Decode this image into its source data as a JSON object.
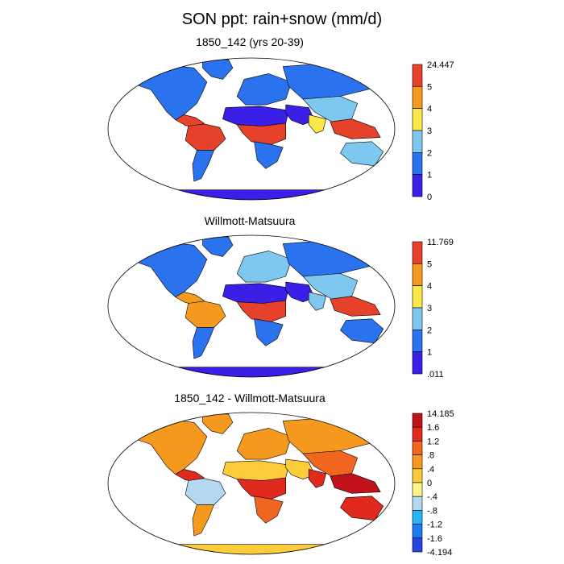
{
  "title": "SON ppt: rain+snow (mm/d)",
  "colors": {
    "land_outline": "#000000",
    "precip_scale": [
      "#3a1fe6",
      "#2a72ee",
      "#7ec8ef",
      "#fde84a",
      "#f59a1e",
      "#e6412b"
    ],
    "diff_scale": [
      "#3a1fe6",
      "#2a45dd",
      "#1b7bf0",
      "#2ab3f5",
      "#b4d8f0",
      "#fff58a",
      "#fdcc3a",
      "#f59a1e",
      "#f0661e",
      "#e02a1e",
      "#c1121c"
    ]
  },
  "panels": [
    {
      "title": "1850_142 (yrs 20-39)",
      "colorbar_labels": [
        "24.447",
        "5",
        "4",
        "3",
        "2",
        "1",
        "0"
      ]
    },
    {
      "title": "Willmott-Matsuura",
      "colorbar_labels": [
        "11.769",
        "5",
        "4",
        "3",
        "2",
        "1",
        ".011"
      ]
    },
    {
      "title": "1850_142 - Willmott-Matsuura",
      "colorbar_labels": [
        "14.185",
        "1.6",
        "1.2",
        ".8",
        ".4",
        "0",
        "-.4",
        "-.8",
        "-1.2",
        "-1.6",
        "-4.194"
      ]
    }
  ],
  "chart_data": [
    {
      "type": "heatmap",
      "title": "1850_142 (yrs 20-39)",
      "variable": "SON ppt: rain+snow (mm/d)",
      "projection": "Robinson",
      "colorbar_levels": [
        0,
        1,
        2,
        3,
        4,
        5
      ],
      "colorbar_min": 0,
      "colorbar_max": 24.447,
      "regions": [
        {
          "region": "North America",
          "level": 1
        },
        {
          "region": "Greenland",
          "level": 1
        },
        {
          "region": "Central America",
          "level": 5
        },
        {
          "region": "Amazon",
          "level": 5
        },
        {
          "region": "Southern South America",
          "level": 1
        },
        {
          "region": "Europe",
          "level": 1
        },
        {
          "region": "Sahara",
          "level": 0
        },
        {
          "region": "Central Africa",
          "level": 5
        },
        {
          "region": "Southern Africa",
          "level": 1
        },
        {
          "region": "Middle East",
          "level": 0
        },
        {
          "region": "Siberia",
          "level": 1
        },
        {
          "region": "East Asia",
          "level": 2
        },
        {
          "region": "South Asia",
          "level": 3
        },
        {
          "region": "Southeast Asia",
          "level": 5
        },
        {
          "region": "Australia",
          "level": 2
        },
        {
          "region": "Antarctica",
          "level": 0
        }
      ]
    },
    {
      "type": "heatmap",
      "title": "Willmott-Matsuura",
      "variable": "SON ppt: rain+snow (mm/d)",
      "projection": "Robinson",
      "colorbar_levels": [
        1,
        2,
        3,
        4,
        5
      ],
      "colorbar_min": 0.011,
      "colorbar_max": 11.769,
      "regions": [
        {
          "region": "North America",
          "level": 1
        },
        {
          "region": "Greenland",
          "level": 1
        },
        {
          "region": "Central America",
          "level": 4
        },
        {
          "region": "Amazon",
          "level": 4
        },
        {
          "region": "Southern South America",
          "level": 1
        },
        {
          "region": "Europe",
          "level": 2
        },
        {
          "region": "Sahara",
          "level": 0
        },
        {
          "region": "Central Africa",
          "level": 5
        },
        {
          "region": "Southern Africa",
          "level": 1
        },
        {
          "region": "Middle East",
          "level": 0
        },
        {
          "region": "Siberia",
          "level": 1
        },
        {
          "region": "East Asia",
          "level": 2
        },
        {
          "region": "South Asia",
          "level": 2
        },
        {
          "region": "Southeast Asia",
          "level": 5
        },
        {
          "region": "Australia",
          "level": 1
        },
        {
          "region": "Antarctica",
          "level": 0
        }
      ]
    },
    {
      "type": "heatmap",
      "title": "1850_142 - Willmott-Matsuura",
      "variable": "SON ppt: rain+snow (mm/d)",
      "projection": "Robinson",
      "colorbar_levels": [
        -1.6,
        -1.2,
        -0.8,
        -0.4,
        0,
        0.4,
        0.8,
        1.2,
        1.6
      ],
      "colorbar_min": -4.194,
      "colorbar_max": 14.185,
      "regions": [
        {
          "region": "North America",
          "level": 0.4
        },
        {
          "region": "Greenland",
          "level": 0.4
        },
        {
          "region": "Central America",
          "level": 1.2
        },
        {
          "region": "Amazon",
          "level": -0.8
        },
        {
          "region": "Southern South America",
          "level": 0.4
        },
        {
          "region": "Europe",
          "level": 0.4
        },
        {
          "region": "Sahara",
          "level": 0
        },
        {
          "region": "Central Africa",
          "level": 1.2
        },
        {
          "region": "Southern Africa",
          "level": 0.8
        },
        {
          "region": "Middle East",
          "level": 0
        },
        {
          "region": "Siberia",
          "level": 0.4
        },
        {
          "region": "East Asia",
          "level": 0.8
        },
        {
          "region": "South Asia",
          "level": 1.2
        },
        {
          "region": "Southeast Asia",
          "level": 1.6
        },
        {
          "region": "Australia",
          "level": 1.2
        },
        {
          "region": "Antarctica",
          "level": 0
        }
      ]
    }
  ]
}
